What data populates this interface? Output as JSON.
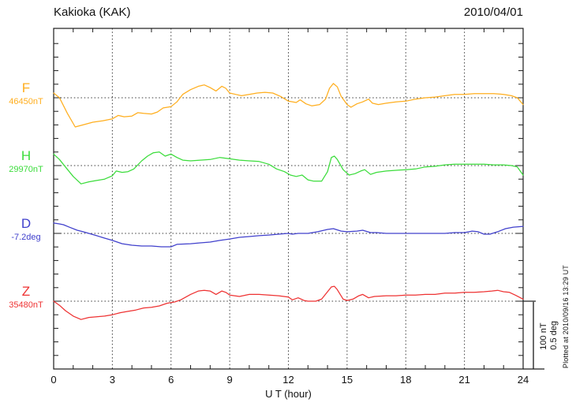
{
  "header": {
    "title": "Kakioka (KAK)",
    "date": "2010/04/01"
  },
  "axis": {
    "xlabel": "U T (hour)",
    "x_ticks": [
      "0",
      "3",
      "6",
      "9",
      "12",
      "15",
      "18",
      "21",
      "24"
    ],
    "grid_hours": [
      3,
      6,
      9,
      12,
      15,
      18,
      21
    ],
    "x_min": 0,
    "x_max": 24
  },
  "scale_bar": {
    "line1": "100 nT",
    "line2": "0.5 deg"
  },
  "footnote": "Plotted at 2010/09/16 13:29 UT",
  "colors": {
    "frame": "#1c1c1c",
    "grid": "#3a3a3a",
    "scale_bar": "#5a5a5a"
  },
  "chart_data": {
    "type": "line",
    "title": "Kakioka (KAK)",
    "subtitle": "2010/04/01",
    "xlabel": "U T (hour)",
    "x_range": [
      0,
      24
    ],
    "x_tick_step": 3,
    "grid": "dotted vertical lines every 3 hours; dotted horizontal baseline per channel",
    "legend_position": "left margin channel labels",
    "scale_bar": "100 nT per division (0.5 deg for D)",
    "series": [
      {
        "name": "F",
        "unit": "nT",
        "color": "#FFAE1E",
        "baseline": 46450,
        "baseline_label": "46450nT",
        "scale_per_division": 100,
        "points": [
          [
            0,
            46457
          ],
          [
            0.3,
            46450
          ],
          [
            0.7,
            46427
          ],
          [
            1.1,
            46407
          ],
          [
            1.5,
            46410
          ],
          [
            2,
            46414
          ],
          [
            2.5,
            46416
          ],
          [
            3,
            46419
          ],
          [
            3.3,
            46424
          ],
          [
            3.6,
            46422
          ],
          [
            4,
            46423
          ],
          [
            4.3,
            46428
          ],
          [
            4.6,
            46427
          ],
          [
            5,
            46426
          ],
          [
            5.3,
            46429
          ],
          [
            5.6,
            46435
          ],
          [
            6,
            46437
          ],
          [
            6.3,
            46444
          ],
          [
            6.6,
            46455
          ],
          [
            7,
            46462
          ],
          [
            7.4,
            46467
          ],
          [
            7.7,
            46469
          ],
          [
            8,
            46465
          ],
          [
            8.3,
            46460
          ],
          [
            8.6,
            46467
          ],
          [
            8.8,
            46464
          ],
          [
            9,
            46457
          ],
          [
            9.3,
            46455
          ],
          [
            9.6,
            46453
          ],
          [
            10,
            46455
          ],
          [
            10.4,
            46457
          ],
          [
            10.8,
            46458
          ],
          [
            11.2,
            46457
          ],
          [
            11.6,
            46452
          ],
          [
            12,
            46445
          ],
          [
            12.4,
            46443
          ],
          [
            12.6,
            46447
          ],
          [
            12.9,
            46441
          ],
          [
            13.2,
            46438
          ],
          [
            13.6,
            46440
          ],
          [
            13.9,
            46448
          ],
          [
            14.1,
            46464
          ],
          [
            14.3,
            46471
          ],
          [
            14.5,
            46466
          ],
          [
            14.7,
            46452
          ],
          [
            15,
            46440
          ],
          [
            15.2,
            46436
          ],
          [
            15.5,
            46441
          ],
          [
            15.8,
            46444
          ],
          [
            16.1,
            46448
          ],
          [
            16.3,
            46442
          ],
          [
            16.6,
            46440
          ],
          [
            17,
            46442
          ],
          [
            17.5,
            46444
          ],
          [
            18,
            46445
          ],
          [
            18.5,
            46448
          ],
          [
            19,
            46450
          ],
          [
            19.5,
            46451
          ],
          [
            20,
            46453
          ],
          [
            20.5,
            46455
          ],
          [
            21,
            46455
          ],
          [
            21.5,
            46456
          ],
          [
            22,
            46456
          ],
          [
            22.5,
            46456
          ],
          [
            23,
            46455
          ],
          [
            23.4,
            46453
          ],
          [
            23.7,
            46450
          ],
          [
            24,
            46440
          ]
        ]
      },
      {
        "name": "H",
        "unit": "nT",
        "color": "#3BDC3B",
        "baseline": 29970,
        "baseline_label": "29970nT",
        "scale_per_division": 100,
        "points": [
          [
            0,
            29987
          ],
          [
            0.3,
            29979
          ],
          [
            0.6,
            29968
          ],
          [
            1,
            29954
          ],
          [
            1.4,
            29943
          ],
          [
            1.8,
            29946
          ],
          [
            2.2,
            29948
          ],
          [
            2.6,
            29950
          ],
          [
            3,
            29955
          ],
          [
            3.2,
            29962
          ],
          [
            3.5,
            29960
          ],
          [
            3.8,
            29961
          ],
          [
            4.1,
            29965
          ],
          [
            4.5,
            29977
          ],
          [
            4.8,
            29984
          ],
          [
            5.1,
            29989
          ],
          [
            5.4,
            29990
          ],
          [
            5.7,
            29984
          ],
          [
            6,
            29987
          ],
          [
            6.3,
            29982
          ],
          [
            6.6,
            29978
          ],
          [
            7,
            29977
          ],
          [
            7.5,
            29978
          ],
          [
            8,
            29979
          ],
          [
            8.5,
            29982
          ],
          [
            9,
            29980
          ],
          [
            9.5,
            29978
          ],
          [
            10,
            29977
          ],
          [
            10.5,
            29976
          ],
          [
            11,
            29972
          ],
          [
            11.4,
            29965
          ],
          [
            11.8,
            29961
          ],
          [
            12.1,
            29956
          ],
          [
            12.4,
            29954
          ],
          [
            12.7,
            29956
          ],
          [
            13,
            29949
          ],
          [
            13.3,
            29947
          ],
          [
            13.7,
            29947
          ],
          [
            14,
            29961
          ],
          [
            14.2,
            29982
          ],
          [
            14.35,
            29984
          ],
          [
            14.5,
            29979
          ],
          [
            14.8,
            29964
          ],
          [
            15.1,
            29956
          ],
          [
            15.4,
            29958
          ],
          [
            15.7,
            29962
          ],
          [
            15.9,
            29964
          ],
          [
            16.2,
            29957
          ],
          [
            16.5,
            29960
          ],
          [
            17,
            29962
          ],
          [
            17.5,
            29963
          ],
          [
            18,
            29964
          ],
          [
            18.5,
            29965
          ],
          [
            19,
            29968
          ],
          [
            19.5,
            29969
          ],
          [
            20,
            29971
          ],
          [
            20.5,
            29972
          ],
          [
            21,
            29972
          ],
          [
            21.5,
            29972
          ],
          [
            22,
            29972
          ],
          [
            22.5,
            29971
          ],
          [
            23,
            29971
          ],
          [
            23.4,
            29970
          ],
          [
            23.7,
            29968
          ],
          [
            24,
            29956
          ]
        ]
      },
      {
        "name": "D",
        "unit": "deg",
        "color": "#4040CC",
        "baseline": -7.2,
        "baseline_label": "-7.2deg",
        "scale_per_division": 0.5,
        "points": [
          [
            0,
            -7.124
          ],
          [
            0.3,
            -7.13
          ],
          [
            0.5,
            -7.136
          ],
          [
            0.8,
            -7.154
          ],
          [
            1.2,
            -7.177
          ],
          [
            1.5,
            -7.188
          ],
          [
            1.8,
            -7.2
          ],
          [
            2.2,
            -7.217
          ],
          [
            2.6,
            -7.235
          ],
          [
            3,
            -7.252
          ],
          [
            3.5,
            -7.276
          ],
          [
            4,
            -7.287
          ],
          [
            4.5,
            -7.293
          ],
          [
            5,
            -7.293
          ],
          [
            5.5,
            -7.299
          ],
          [
            6,
            -7.299
          ],
          [
            6.3,
            -7.281
          ],
          [
            7,
            -7.276
          ],
          [
            7.5,
            -7.27
          ],
          [
            8,
            -7.264
          ],
          [
            8.5,
            -7.252
          ],
          [
            9,
            -7.241
          ],
          [
            9.5,
            -7.229
          ],
          [
            10,
            -7.223
          ],
          [
            10.5,
            -7.217
          ],
          [
            11,
            -7.212
          ],
          [
            11.5,
            -7.206
          ],
          [
            12,
            -7.2
          ],
          [
            12.2,
            -7.206
          ],
          [
            12.5,
            -7.2
          ],
          [
            13,
            -7.2
          ],
          [
            13.5,
            -7.188
          ],
          [
            14,
            -7.171
          ],
          [
            14.3,
            -7.165
          ],
          [
            14.7,
            -7.183
          ],
          [
            15,
            -7.188
          ],
          [
            15.5,
            -7.183
          ],
          [
            15.8,
            -7.177
          ],
          [
            16.2,
            -7.194
          ],
          [
            16.5,
            -7.194
          ],
          [
            17,
            -7.2
          ],
          [
            18,
            -7.2
          ],
          [
            19,
            -7.2
          ],
          [
            20,
            -7.2
          ],
          [
            20.5,
            -7.194
          ],
          [
            21,
            -7.194
          ],
          [
            21.4,
            -7.183
          ],
          [
            21.7,
            -7.188
          ],
          [
            22,
            -7.206
          ],
          [
            22.3,
            -7.206
          ],
          [
            22.7,
            -7.188
          ],
          [
            23.1,
            -7.165
          ],
          [
            23.5,
            -7.154
          ],
          [
            24,
            -7.148
          ]
        ]
      },
      {
        "name": "Z",
        "unit": "nT",
        "color": "#EE3232",
        "baseline": 35480,
        "baseline_label": "35480nT",
        "scale_per_division": 100,
        "points": [
          [
            0,
            35480
          ],
          [
            0.3,
            35474
          ],
          [
            0.6,
            35466
          ],
          [
            1,
            35458
          ],
          [
            1.4,
            35453
          ],
          [
            1.8,
            35456
          ],
          [
            2.2,
            35457
          ],
          [
            2.6,
            35458
          ],
          [
            3,
            35460
          ],
          [
            3.4,
            35463
          ],
          [
            3.8,
            35465
          ],
          [
            4.2,
            35467
          ],
          [
            4.6,
            35470
          ],
          [
            5,
            35471
          ],
          [
            5.4,
            35473
          ],
          [
            5.8,
            35477
          ],
          [
            6.2,
            35479
          ],
          [
            6.5,
            35482
          ],
          [
            7,
            35490
          ],
          [
            7.4,
            35495
          ],
          [
            7.7,
            35496
          ],
          [
            8,
            35495
          ],
          [
            8.3,
            35490
          ],
          [
            8.6,
            35495
          ],
          [
            8.8,
            35493
          ],
          [
            9,
            35489
          ],
          [
            9.5,
            35487
          ],
          [
            10,
            35490
          ],
          [
            10.5,
            35490
          ],
          [
            11,
            35489
          ],
          [
            11.5,
            35488
          ],
          [
            12,
            35486
          ],
          [
            12.2,
            35482
          ],
          [
            12.5,
            35485
          ],
          [
            12.8,
            35481
          ],
          [
            13,
            35480
          ],
          [
            13.4,
            35480
          ],
          [
            13.7,
            35483
          ],
          [
            14,
            35494
          ],
          [
            14.2,
            35501
          ],
          [
            14.35,
            35502
          ],
          [
            14.5,
            35497
          ],
          [
            14.8,
            35483
          ],
          [
            15,
            35481
          ],
          [
            15.3,
            35483
          ],
          [
            15.6,
            35488
          ],
          [
            15.8,
            35490
          ],
          [
            16.1,
            35485
          ],
          [
            16.4,
            35487
          ],
          [
            17,
            35488
          ],
          [
            17.5,
            35488
          ],
          [
            18,
            35489
          ],
          [
            18.5,
            35489
          ],
          [
            19,
            35490
          ],
          [
            19.5,
            35490
          ],
          [
            20,
            35492
          ],
          [
            20.5,
            35492
          ],
          [
            21,
            35493
          ],
          [
            21.5,
            35493
          ],
          [
            22,
            35494
          ],
          [
            22.4,
            35495
          ],
          [
            22.7,
            35496
          ],
          [
            23,
            35494
          ],
          [
            23.3,
            35493
          ],
          [
            23.6,
            35489
          ],
          [
            24,
            35483
          ]
        ]
      }
    ]
  }
}
